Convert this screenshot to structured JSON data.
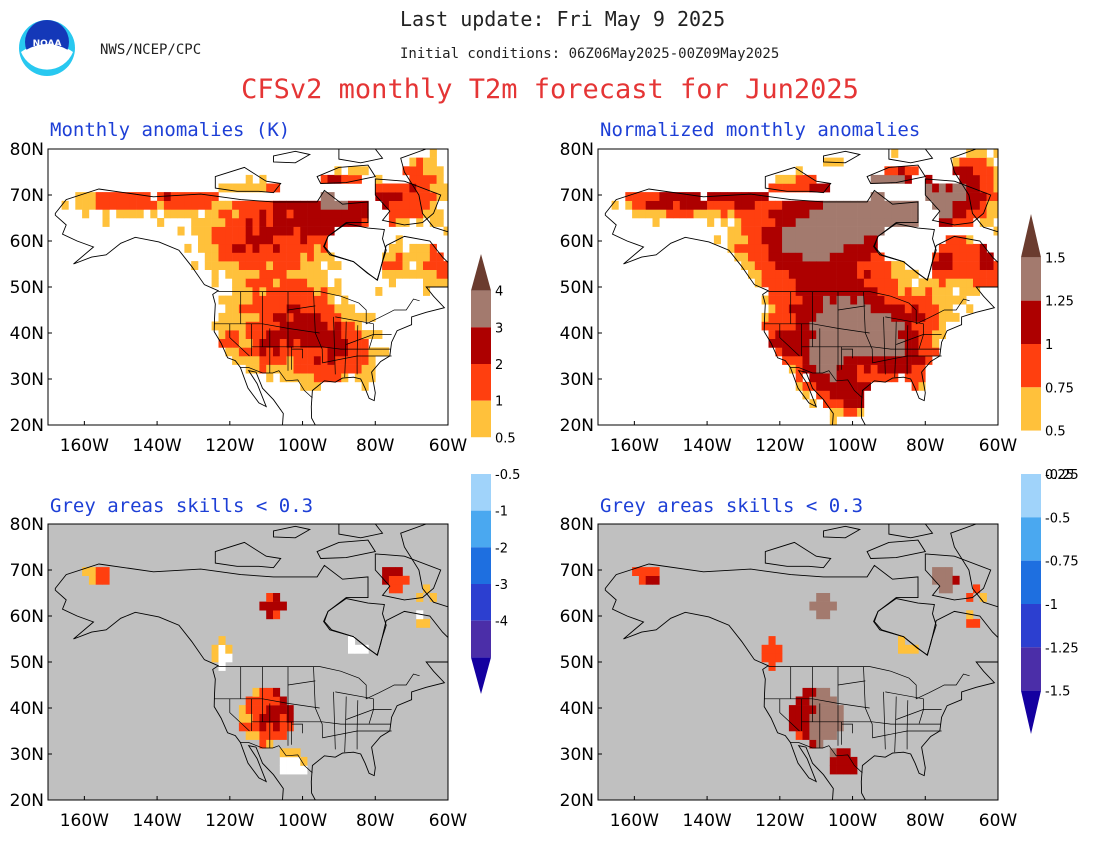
{
  "header": {
    "last_update": "Last update: Fri May 9 2025",
    "agency": "NWS/NCEP/CPC",
    "initial_conditions": "Initial conditions: 06Z06May2025-00Z09May2025",
    "title": "CFSv2 monthly T2m forecast for Jun2025"
  },
  "logo": {
    "text": "NOAA",
    "icon": "noaa-logo-icon"
  },
  "axes": {
    "lat_labels": [
      "80N",
      "70N",
      "60N",
      "50N",
      "40N",
      "30N",
      "20N"
    ],
    "lon_labels": [
      "160W",
      "140W",
      "120W",
      "100W",
      "80W",
      "60W"
    ],
    "lat_range": [
      20,
      80
    ],
    "lon_range": [
      -170,
      -60
    ]
  },
  "panels": [
    {
      "title": "Monthly anomalies (K)",
      "shading": "full",
      "variable": "anomaly"
    },
    {
      "title": "Normalized monthly anomalies",
      "shading": "full",
      "variable": "normalized"
    },
    {
      "title": "Grey areas skills < 0.3",
      "shading": "masked",
      "variable": "anomaly"
    },
    {
      "title": "Grey areas skills < 0.3",
      "shading": "masked",
      "variable": "normalized"
    }
  ],
  "colorbars": {
    "anomaly": {
      "labels_upper": [
        "4",
        "3",
        "2",
        "1",
        "0.5"
      ],
      "labels_lower": [
        "-0.5",
        "-1",
        "-2",
        "-3",
        "-4"
      ]
    },
    "normalized": {
      "labels_upper": [
        "1.5",
        "1.25",
        "1",
        "0.75",
        "0.5",
        "0.25"
      ],
      "labels_lower": [
        "-0.25",
        "-0.5",
        "-0.75",
        "-1",
        "-1.25",
        "-1.5"
      ]
    }
  },
  "colors": {
    "c1": "#ffc13b",
    "c2": "#ff3f0f",
    "c3": "#ad0000",
    "c4": "#a37a6e",
    "c5": "#6b3c2f",
    "n1": "#a0d3fa",
    "n2": "#4aa8f0",
    "n3": "#1e6fe0",
    "n4": "#2c3fd0",
    "n5": "#4b2ea8",
    "n6": "#1400a0",
    "mask": "#c0c0c0",
    "title_red": "#e53535",
    "title_blue": "#1d3fd6"
  }
}
